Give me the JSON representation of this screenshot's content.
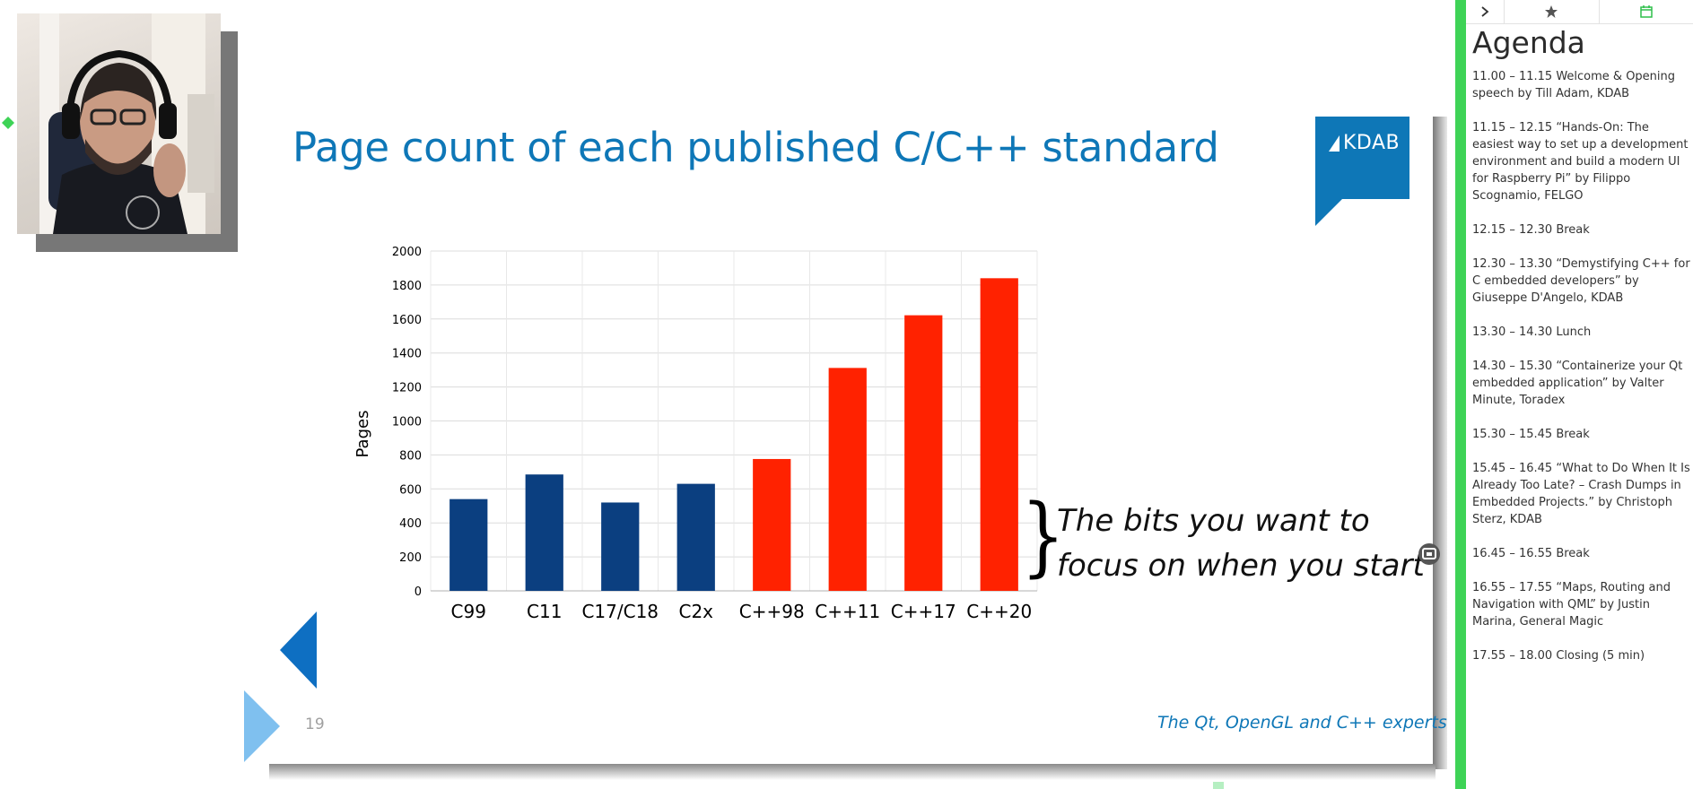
{
  "slide": {
    "title": "Page count of each published C/C++ standard",
    "logo_text": "KDAB",
    "annotation_line1": "The bits you want to",
    "annotation_line2": "focus on when you start",
    "brace": "}",
    "page_number": "19",
    "footer_tagline": "The Qt, OpenGL and C++ experts"
  },
  "chart_data": {
    "type": "bar",
    "categories": [
      "C99",
      "C11",
      "C17/C18",
      "C2x",
      "C++98",
      "C++11",
      "C++17",
      "C++20"
    ],
    "values": [
      540,
      685,
      520,
      630,
      776,
      1312,
      1622,
      1840
    ],
    "bar_colors": [
      "#0b3f80",
      "#0b3f80",
      "#0b3f80",
      "#0b3f80",
      "#ff2200",
      "#ff2200",
      "#ff2200",
      "#ff2200"
    ],
    "ylabel": "Pages",
    "ylim": [
      0,
      2000
    ],
    "yticks": [
      "0",
      "200",
      "400",
      "600",
      "800",
      "1000",
      "1200",
      "1400",
      "1600",
      "1800",
      "2000"
    ],
    "grid": true
  },
  "panel": {
    "title": "Agenda",
    "tabs": [
      {
        "icon": "chevron-right-icon",
        "glyph": "›"
      },
      {
        "icon": "star-icon",
        "glyph": "★"
      },
      {
        "icon": "calendar-icon",
        "glyph": "▦"
      }
    ],
    "border_color": "#3ed356",
    "items": [
      "11.00 – 11.15 Welcome & Opening speech by Till Adam, KDAB",
      "11.15 – 12.15 “Hands-On: The easiest way to set up a development environment and build a modern UI for Raspberry Pi” by Filippo Scognamio, FELGO",
      "12.15 – 12.30 Break",
      "12.30 – 13.30 “Demystifying C++ for C embedded developers” by Giuseppe D'Angelo, KDAB",
      "13.30 – 14.30 Lunch",
      "14.30 – 15.30 “Containerize your Qt embedded application” by Valter Minute, Toradex",
      "15.30 – 15.45 Break",
      "15.45 – 16.45 “What to Do When It Is Already Too Late? – Crash Dumps in Embedded Projects.” by Christoph Sterz, KDAB",
      "16.45 – 16.55 Break",
      "16.55 – 17.55 “Maps, Routing and Navigation with QML” by Justin Marina, General Magic",
      "17.55 – 18.00 Closing (5 min)"
    ]
  }
}
